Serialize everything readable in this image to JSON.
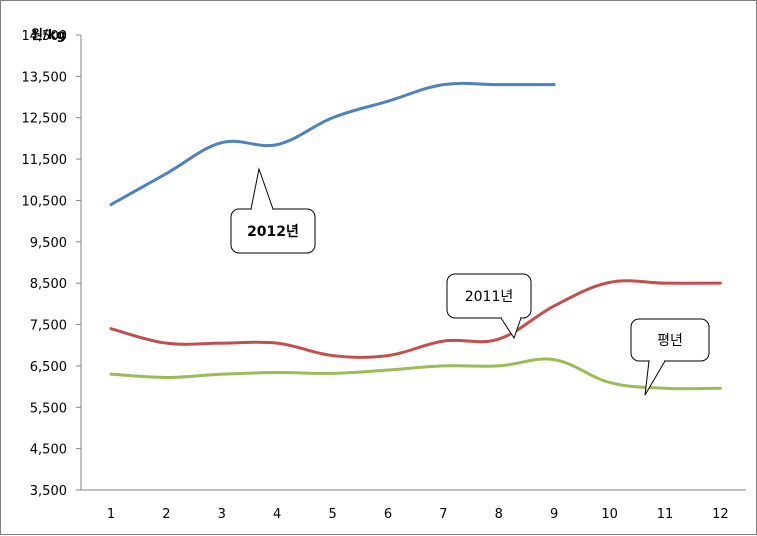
{
  "chart_data": {
    "type": "line",
    "title": "",
    "ylabel": "원/kg",
    "xlabel": "",
    "categories": [
      "1",
      "2",
      "3",
      "4",
      "5",
      "6",
      "7",
      "8",
      "9",
      "10",
      "11",
      "12"
    ],
    "y_ticks": [
      "14,500",
      "13,500",
      "12,500",
      "11,500",
      "10,500",
      "9,500",
      "8,500",
      "7,500",
      "6,500",
      "5,500",
      "4,500",
      "3,500"
    ],
    "ylim": [
      3500,
      14500
    ],
    "grid": false,
    "series": [
      {
        "name": "2012년",
        "color": "#4f81bd",
        "values": [
          10400,
          11150,
          11900,
          11850,
          12500,
          12900,
          13300,
          13300,
          13300,
          null,
          null,
          null
        ]
      },
      {
        "name": "2011년",
        "color": "#c0504d",
        "values": [
          7400,
          7050,
          7050,
          7050,
          6750,
          6750,
          7100,
          7150,
          7950,
          8520,
          8500,
          8500
        ]
      },
      {
        "name": "평년",
        "color": "#9bbb59",
        "values": [
          6300,
          6220,
          6300,
          6340,
          6320,
          6400,
          6500,
          6500,
          6650,
          6100,
          5960,
          5960
        ]
      }
    ],
    "callouts": [
      {
        "text": "2012년",
        "bold": true
      },
      {
        "text": "2011년",
        "bold": false
      },
      {
        "text": "평년",
        "bold": false
      }
    ]
  }
}
